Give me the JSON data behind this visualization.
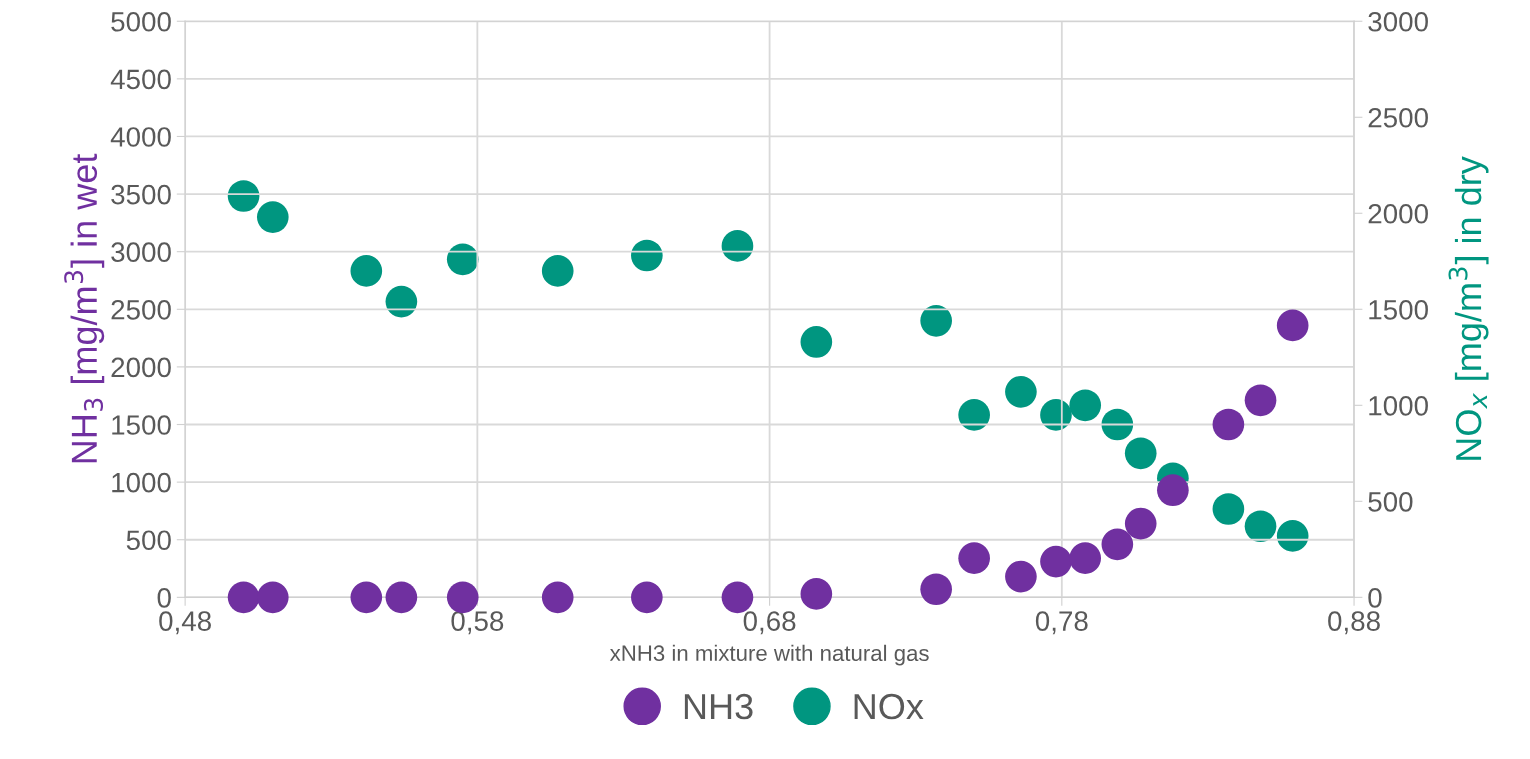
{
  "chart_data": {
    "type": "scatter",
    "xlabel": "xNH3 in mixture with natural gas",
    "ylabel": "NH$_{3}$ [mg/m$^{3}$] in wet",
    "y2label": "NO$_{x}$ [mg/m$^{3}$] in dry",
    "x": [
      0.5,
      0.51,
      0.542,
      0.554,
      0.575,
      0.6075,
      0.638,
      0.669,
      0.696,
      0.737,
      0.75,
      0.766,
      0.778,
      0.788,
      0.799,
      0.807,
      0.818,
      0.837,
      0.848,
      0.859
    ],
    "series": [
      {
        "name": "NH3",
        "color": "#7030a0",
        "values": [
          0,
          0,
          0,
          0,
          0,
          0,
          0,
          0,
          30,
          70,
          340,
          180,
          310,
          340,
          460,
          640,
          930,
          1500,
          1710,
          2360
        ]
      },
      {
        "name": "NOx",
        "color": "#009680",
        "axis": "y2",
        "values": [
          2090,
          1980,
          1700,
          1540,
          1760,
          1700,
          1780,
          1830,
          1330,
          1440,
          950,
          1070,
          950,
          1000,
          900,
          750,
          620,
          460,
          370,
          320
        ]
      }
    ],
    "xlim": [
      0.48,
      0.88
    ],
    "xticks": [
      {
        "value": 0.48,
        "label": "0,48"
      },
      {
        "value": 0.58,
        "label": "0,58"
      },
      {
        "value": 0.68,
        "label": "0,68"
      },
      {
        "value": 0.78,
        "label": "0,78"
      },
      {
        "value": 0.88,
        "label": "0,88"
      }
    ],
    "ylim": [
      0,
      5000
    ],
    "yticks": [
      0,
      500,
      1000,
      1500,
      2000,
      2500,
      3000,
      3500,
      4000,
      4500,
      5000
    ],
    "y2lim": [
      0,
      3000
    ],
    "y2ticks": [
      0,
      500,
      1000,
      1500,
      2000,
      2500,
      3000
    ],
    "grid": true,
    "legend": "bottom",
    "marker": "circle"
  }
}
